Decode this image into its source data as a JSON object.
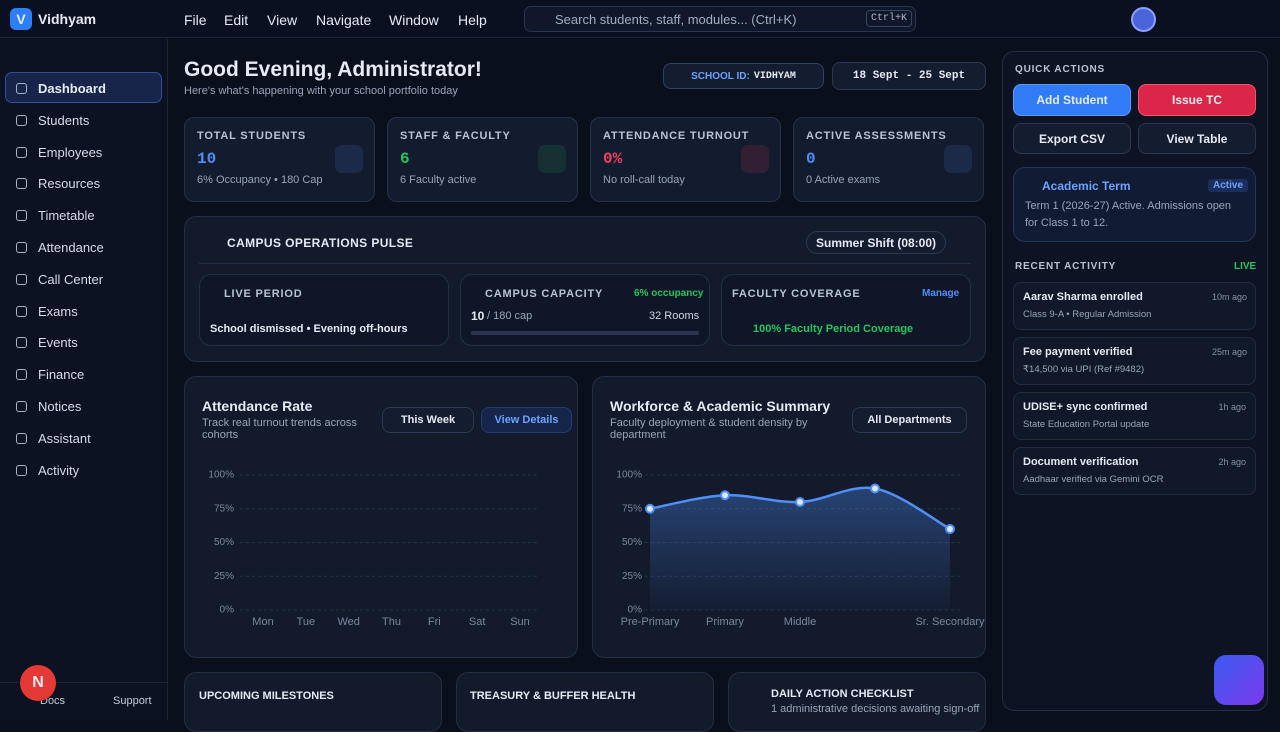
{
  "app": {
    "logo": "V",
    "name": "Vidhyam",
    "menu": [
      "File",
      "Edit",
      "View",
      "Navigate",
      "Window",
      "Help"
    ],
    "search": "Search students, staff, modules... (Ctrl+K)",
    "shortcut": "Ctrl+K",
    "avatar": "N"
  },
  "sidebar": {
    "items": [
      "Dashboard",
      "Students",
      "Employees",
      "Resources",
      "Timetable",
      "Attendance",
      "Call Center",
      "Exams",
      "Events",
      "Finance",
      "Notices",
      "Assistant",
      "Activity"
    ],
    "footer": [
      "Docs",
      "Support"
    ]
  },
  "header": {
    "greeting": "Good Evening, Administrator!",
    "subtitle": "Here's what's happening with your school portfolio today",
    "school_id_label": "SCHOOL ID:",
    "school_id": "VIDHYAM",
    "date_range": "18 Sept - 25 Sept"
  },
  "stats": [
    {
      "label": "TOTAL STUDENTS",
      "value": "10",
      "note": "6% Occupancy • 180 Cap"
    },
    {
      "label": "STAFF & FACULTY",
      "value": "6",
      "note": "6 Faculty active"
    },
    {
      "label": "ATTENDANCE TURNOUT",
      "value": "0%",
      "note": "No roll-call today"
    },
    {
      "label": "ACTIVE ASSESSMENTS",
      "value": "0",
      "note": "0 Active exams"
    }
  ],
  "pulse": {
    "title": "CAMPUS OPERATIONS PULSE",
    "shift": "Summer Shift (08:00)",
    "live_label": "LIVE PERIOD",
    "live_text": "School dismissed • Evening off-hours",
    "capacity_label": "CAMPUS CAPACITY",
    "occupancy": "6% occupancy",
    "capacity_value": "10",
    "capacity_cap": "/ 180 cap",
    "rooms": "32 Rooms",
    "coverage_label": "FACULTY COVERAGE",
    "manage": "Manage",
    "coverage_text": "100% Faculty Period Coverage"
  },
  "chart_data": [
    {
      "type": "line",
      "title": "Attendance Rate",
      "subtitle": "Track real turnout trends across cohorts",
      "filter": "This Week",
      "action": "View Details",
      "categories": [
        "Mon",
        "Tue",
        "Wed",
        "Thu",
        "Fri",
        "Sat",
        "Sun"
      ],
      "values": [
        null,
        null,
        null,
        null,
        null,
        null,
        null
      ],
      "color": "#4f8ff7",
      "ylim": [
        0,
        100
      ],
      "yticks": [
        {
          "value": 0,
          "label": "0%"
        },
        {
          "value": 25,
          "label": "25%"
        },
        {
          "value": 50,
          "label": "50%"
        },
        {
          "value": 75,
          "label": "75%"
        },
        {
          "value": 100,
          "label": "100%"
        }
      ],
      "grid": true
    },
    {
      "type": "line",
      "title": "Workforce & Academic Summary",
      "subtitle": "Faculty deployment & student density by department",
      "filter": "All Departments",
      "categories": [
        "Pre-Primary",
        "Primary",
        "Middle",
        null,
        "Sr. Secondary"
      ],
      "values": [
        75,
        85,
        80,
        90,
        60
      ],
      "color": "#4f8ff7",
      "ylim": [
        0,
        100
      ],
      "yticks": [
        {
          "value": 0,
          "label": "0%"
        },
        {
          "value": 25,
          "label": "25%"
        },
        {
          "value": 50,
          "label": "50%"
        },
        {
          "value": 75,
          "label": "75%"
        },
        {
          "value": 100,
          "label": "100%"
        }
      ],
      "grid": true
    }
  ],
  "bottom_cards": {
    "milestones": "UPCOMING MILESTONES",
    "treasury": "TREASURY & BUFFER HEALTH",
    "checklist": "DAILY ACTION CHECKLIST",
    "checklist_note": "1 administrative decisions awaiting sign-off"
  },
  "quick_actions": {
    "title": "QUICK ACTIONS",
    "buttons": [
      "Add Student",
      "Issue TC",
      "Export CSV",
      "View Table"
    ]
  },
  "term": {
    "title": "Academic Term",
    "badge": "Active",
    "text": "Term 1 (2026-27) Active. Admissions open for Class 1 to 12."
  },
  "activity": {
    "title": "RECENT ACTIVITY",
    "live": "LIVE",
    "items": [
      {
        "title": "Aarav Sharma enrolled",
        "time": "10m ago",
        "detail": "Class 9-A • Regular Admission"
      },
      {
        "title": "Fee payment verified",
        "time": "25m ago",
        "detail": "₹14,500 via UPI (Ref #9482)"
      },
      {
        "title": "UDISE+ sync confirmed",
        "time": "1h ago",
        "detail": "State Education Portal update"
      },
      {
        "title": "Document verification",
        "time": "2h ago",
        "detail": "Aadhaar verified via Gemini OCR"
      }
    ]
  }
}
